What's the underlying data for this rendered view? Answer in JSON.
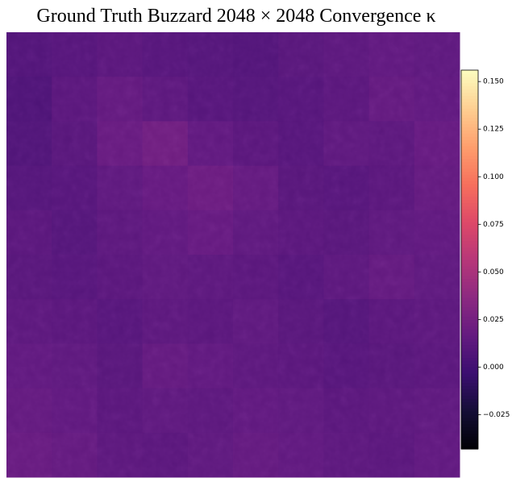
{
  "chart_data": {
    "type": "heatmap",
    "title": "Ground Truth Buzzard 2048 × 2048 Convergence κ",
    "colormap": "magma",
    "clim": [
      -0.043,
      0.156
    ],
    "cticks": [
      {
        "value": -0.025,
        "label": "−0.025"
      },
      {
        "value": 0,
        "label": "0.000"
      },
      {
        "value": 0.025,
        "label": "0.025"
      },
      {
        "value": 0.05,
        "label": "0.050"
      },
      {
        "value": 0.075,
        "label": "0.075"
      },
      {
        "value": 0.1,
        "label": "0.100"
      },
      {
        "value": 0.125,
        "label": "0.125"
      },
      {
        "value": 0.15,
        "label": "0.150"
      }
    ],
    "z": [
      [
        0.008,
        0.01,
        0.012,
        0.01,
        0.009,
        0.008,
        0.011,
        0.013,
        0.015,
        0.014
      ],
      [
        0.006,
        0.012,
        0.016,
        0.013,
        0.01,
        0.009,
        0.01,
        0.012,
        0.016,
        0.015
      ],
      [
        0.007,
        0.011,
        0.018,
        0.022,
        0.015,
        0.012,
        0.01,
        0.014,
        0.013,
        0.017
      ],
      [
        0.009,
        0.01,
        0.014,
        0.017,
        0.02,
        0.016,
        0.011,
        0.01,
        0.012,
        0.016
      ],
      [
        0.012,
        0.009,
        0.013,
        0.015,
        0.017,
        0.014,
        0.012,
        0.011,
        0.014,
        0.015
      ],
      [
        0.011,
        0.01,
        0.012,
        0.014,
        0.013,
        0.012,
        0.01,
        0.013,
        0.016,
        0.014
      ],
      [
        0.013,
        0.012,
        0.01,
        0.013,
        0.012,
        0.014,
        0.011,
        0.009,
        0.012,
        0.013
      ],
      [
        0.015,
        0.014,
        0.011,
        0.016,
        0.015,
        0.013,
        0.012,
        0.01,
        0.011,
        0.012
      ],
      [
        0.016,
        0.015,
        0.012,
        0.014,
        0.013,
        0.015,
        0.014,
        0.012,
        0.013,
        0.014
      ],
      [
        0.018,
        0.016,
        0.013,
        0.012,
        0.014,
        0.016,
        0.015,
        0.013,
        0.012,
        0.015
      ]
    ]
  }
}
